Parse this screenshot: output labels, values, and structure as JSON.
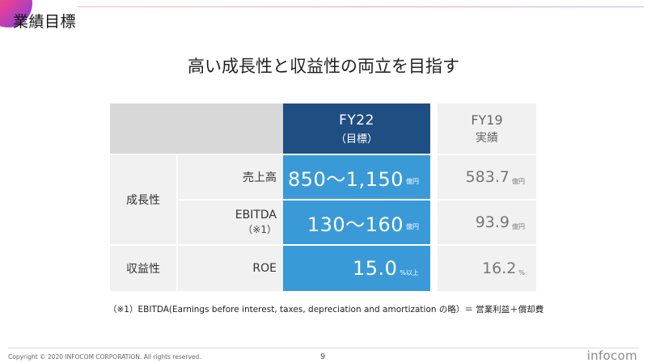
{
  "header": {
    "title": "業績目標",
    "headline": "高い成長性と収益性の両立を目指す"
  },
  "table": {
    "fy22_label": "FY22",
    "fy22_sub": "（目標）",
    "fy19_label": "FY19",
    "fy19_sub": "実績",
    "growth_label": "成長性",
    "profit_label": "収益性",
    "sales_label": "売上高",
    "ebitda_label": "EBITDA",
    "ebitda_note": "（※1）",
    "roe_label": "ROE",
    "sales_fy22": "850～1,150",
    "sales_fy22_unit": "億円",
    "ebitda_fy22": "130～160",
    "ebitda_fy22_unit": "億円",
    "roe_fy22": "15.0",
    "roe_fy22_unit": "%以上",
    "sales_fy19": "583.7",
    "sales_fy19_unit": "億円",
    "ebitda_fy19": "93.9",
    "ebitda_fy19_unit": "億円",
    "roe_fy19": "16.2",
    "roe_fy19_unit": "%"
  },
  "footnote": "（※1）EBITDA(Earnings before interest, taxes, depreciation and amortization の略）＝ 営業利益＋償却費",
  "footer": {
    "copyright": "Copyright © 2020 INFOCOM CORPORATION. All rights reserved.",
    "page_number": "9",
    "logo_text": "infocom"
  },
  "colors": {
    "navy": "#1f4e82",
    "blue": "#3a9ad8",
    "header_gray": "#d8d8d8",
    "light_gray": "#f1f1f1"
  }
}
